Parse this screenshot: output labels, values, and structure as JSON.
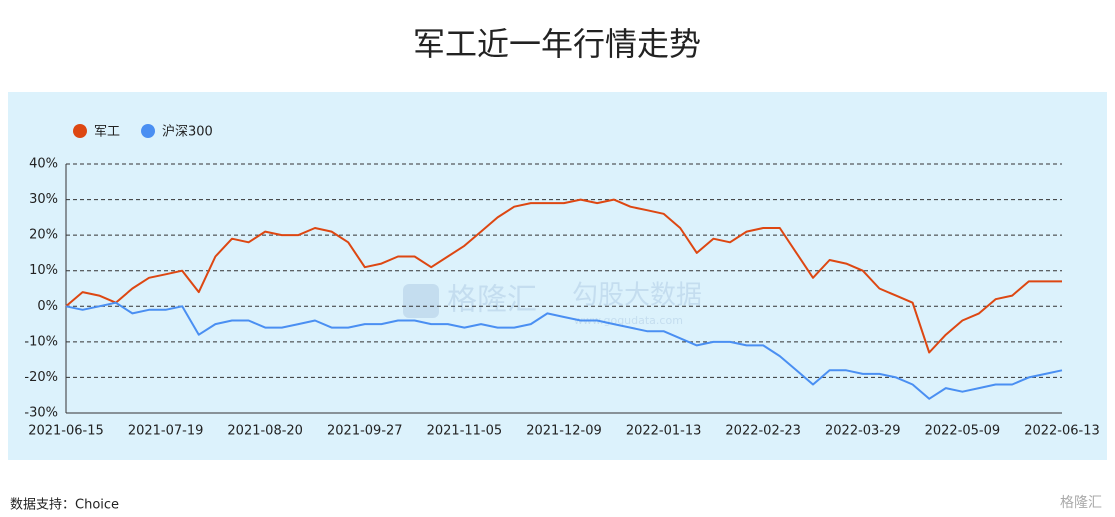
{
  "chart_data": {
    "type": "line",
    "title": "军工近一年行情走势",
    "categories": [
      "2021-06-15",
      null,
      null,
      null,
      null,
      null,
      "2021-07-19",
      null,
      null,
      null,
      null,
      null,
      "2021-08-20",
      null,
      null,
      null,
      null,
      null,
      "2021-09-27",
      null,
      null,
      null,
      null,
      null,
      "2021-11-05",
      null,
      null,
      null,
      null,
      null,
      "2021-12-09",
      null,
      null,
      null,
      null,
      null,
      "2022-01-13",
      null,
      null,
      null,
      null,
      null,
      "2022-02-23",
      null,
      null,
      null,
      null,
      null,
      "2022-03-29",
      null,
      null,
      null,
      null,
      null,
      "2022-05-09",
      null,
      null,
      null,
      null,
      null,
      "2022-06-13"
    ],
    "series": [
      {
        "name": "军工",
        "color": "#dd4712",
        "values": [
          0,
          4,
          3,
          1,
          5,
          8,
          9,
          10,
          4,
          14,
          19,
          18,
          21,
          20,
          20,
          22,
          21,
          18,
          11,
          12,
          14,
          14,
          11,
          14,
          17,
          21,
          25,
          28,
          29,
          29,
          29,
          30,
          29,
          30,
          28,
          27,
          26,
          22,
          15,
          19,
          18,
          21,
          22,
          22,
          15,
          8,
          13,
          12,
          10,
          5,
          3,
          1,
          -13,
          -8,
          -4,
          -2,
          2,
          3,
          7,
          7,
          7
        ]
      },
      {
        "name": "沪深300",
        "color": "#4a8ff2",
        "values": [
          0,
          -1,
          0,
          1,
          -2,
          -1,
          -1,
          0,
          -8,
          -5,
          -4,
          -4,
          -6,
          -6,
          -5,
          -4,
          -6,
          -6,
          -5,
          -5,
          -4,
          -4,
          -5,
          -5,
          -6,
          -5,
          -6,
          -6,
          -5,
          -2,
          -3,
          -4,
          -4,
          -5,
          -6,
          -7,
          -7,
          -9,
          -11,
          -10,
          -10,
          -11,
          -11,
          -14,
          -18,
          -22,
          -18,
          -18,
          -19,
          -19,
          -20,
          -22,
          -26,
          -23,
          -24,
          -23,
          -22,
          -22,
          -20,
          -19,
          -18
        ]
      }
    ],
    "ylim": [
      -30,
      40
    ],
    "yticks": [
      {
        "value": -30,
        "label": "-30%"
      },
      {
        "value": -20,
        "label": "-20%"
      },
      {
        "value": -10,
        "label": "-10%"
      },
      {
        "value": 0,
        "label": "0%"
      },
      {
        "value": 10,
        "label": "10%"
      },
      {
        "value": 20,
        "label": "20%"
      },
      {
        "value": 30,
        "label": "30%"
      },
      {
        "value": 40,
        "label": "40%"
      }
    ],
    "grid": true,
    "legend": "top-left"
  },
  "source": "数据支持：Choice",
  "watermark": {
    "brand": "格隆汇",
    "product": "勾股大数据",
    "url": "www.gogudata.com",
    "corner": "格隆汇"
  }
}
